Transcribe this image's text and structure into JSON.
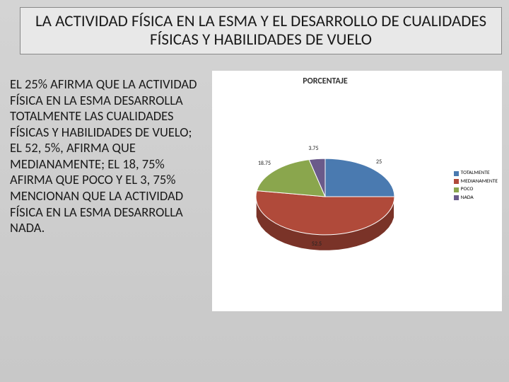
{
  "title": "LA ACTIVIDAD FÍSICA EN LA ESMA Y EL DESARROLLO DE CUALIDADES FÍSICAS Y HABILIDADES DE VUELO",
  "body_text": "EL 25% AFIRMA QUE LA ACTIVIDAD FÍSICA EN LA ESMA DESARROLLA TOTALMENTE LAS CUALIDADES FÍSICAS Y HABILIDADES DE VUELO; EL 52, 5%, AFIRMA QUE MEDIANAMENTE; EL 18, 75% AFIRMA QUE POCO Y EL 3, 75% MENCIONAN QUE LA ACTIVIDAD FÍSICA EN LA ESMA DESARROLLA  NADA.",
  "chart": {
    "type": "pie-3d",
    "title": "PORCENTAJE",
    "background_color": "#ffffff",
    "slices": [
      {
        "label": "TOTALMENTE",
        "value": 25,
        "display": "25",
        "color": "#4a7ab0",
        "side_color": "#355a85"
      },
      {
        "label": "MEDIANAMENTE",
        "value": 52.5,
        "display": "52.5",
        "color": "#b04a3a",
        "side_color": "#7a3328"
      },
      {
        "label": "POCO",
        "value": 18.75,
        "display": "18.75",
        "color": "#8aa64d",
        "side_color": "#657a38"
      },
      {
        "label": "NADA",
        "value": 3.75,
        "display": "3.75",
        "color": "#6a5a8a",
        "side_color": "#4d4066"
      }
    ],
    "label_fontsize": 8,
    "legend_fontsize": 7.5,
    "title_fontsize": 12,
    "start_angle_deg": -90,
    "tilt": 0.55
  }
}
